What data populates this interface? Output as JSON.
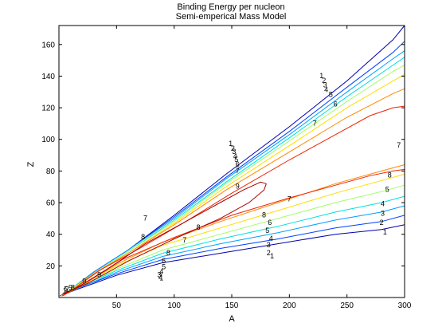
{
  "chart_data": {
    "type": "contour",
    "title": "Binding Energy per nucleon",
    "subtitle": "Semi-emperical Mass Model",
    "xlabel": "A",
    "ylabel": "Z",
    "xlim": [
      0,
      300
    ],
    "ylim": [
      0,
      172
    ],
    "xticks": [
      50,
      100,
      150,
      200,
      250,
      300
    ],
    "yticks": [
      20,
      40,
      60,
      80,
      100,
      120,
      140,
      160
    ],
    "grid": false,
    "legend": "none",
    "levels": [
      {
        "value": 1,
        "color": "#0000ad",
        "upper": [
          [
            1,
            1
          ],
          [
            8,
            4
          ],
          [
            30,
            16
          ],
          [
            60,
            30
          ],
          [
            100,
            52
          ],
          [
            145,
            78
          ],
          [
            200,
            108
          ],
          [
            250,
            137
          ],
          [
            290,
            163
          ],
          [
            300,
            172
          ]
        ],
        "lower": [
          [
            1,
            1
          ],
          [
            15,
            5
          ],
          [
            50,
            14
          ],
          [
            90,
            22
          ],
          [
            140,
            28
          ],
          [
            190,
            34
          ],
          [
            240,
            40
          ],
          [
            280,
            43
          ],
          [
            300,
            46
          ]
        ]
      },
      {
        "value": 2,
        "color": "#0040ff",
        "upper": [
          [
            1,
            1
          ],
          [
            8,
            4
          ],
          [
            30,
            16
          ],
          [
            60,
            30
          ],
          [
            100,
            51
          ],
          [
            145,
            76
          ],
          [
            200,
            105
          ],
          [
            250,
            133
          ],
          [
            290,
            155
          ],
          [
            300,
            162
          ]
        ],
        "lower": [
          [
            1,
            1
          ],
          [
            16,
            6
          ],
          [
            50,
            15
          ],
          [
            90,
            24
          ],
          [
            140,
            31
          ],
          [
            190,
            37
          ],
          [
            240,
            44
          ],
          [
            280,
            48
          ],
          [
            300,
            52
          ]
        ]
      },
      {
        "value": 3,
        "color": "#00a0ff",
        "upper": [
          [
            2,
            1
          ],
          [
            8,
            4
          ],
          [
            30,
            16
          ],
          [
            60,
            30
          ],
          [
            100,
            50
          ],
          [
            145,
            75
          ],
          [
            200,
            103
          ],
          [
            250,
            130
          ],
          [
            290,
            151
          ],
          [
            300,
            156
          ]
        ],
        "lower": [
          [
            2,
            1
          ],
          [
            17,
            6
          ],
          [
            50,
            16
          ],
          [
            90,
            26
          ],
          [
            140,
            34
          ],
          [
            190,
            41
          ],
          [
            240,
            49
          ],
          [
            280,
            54
          ],
          [
            300,
            58
          ]
        ]
      },
      {
        "value": 4,
        "color": "#00e0e0",
        "upper": [
          [
            2,
            1
          ],
          [
            8,
            4
          ],
          [
            30,
            15
          ],
          [
            60,
            29
          ],
          [
            100,
            49
          ],
          [
            145,
            73
          ],
          [
            200,
            101
          ],
          [
            250,
            127
          ],
          [
            290,
            147
          ],
          [
            300,
            152
          ]
        ],
        "lower": [
          [
            2,
            1
          ],
          [
            18,
            7
          ],
          [
            50,
            17
          ],
          [
            90,
            28
          ],
          [
            140,
            37
          ],
          [
            190,
            45
          ],
          [
            240,
            54
          ],
          [
            280,
            60
          ],
          [
            300,
            64
          ]
        ]
      },
      {
        "value": 5,
        "color": "#a0ff60",
        "upper": [
          [
            2,
            1
          ],
          [
            8,
            4
          ],
          [
            30,
            15
          ],
          [
            60,
            29
          ],
          [
            100,
            48
          ],
          [
            145,
            72
          ],
          [
            200,
            99
          ],
          [
            250,
            124
          ],
          [
            290,
            143
          ],
          [
            300,
            147
          ]
        ],
        "lower": [
          [
            2,
            1
          ],
          [
            19,
            7
          ],
          [
            50,
            18
          ],
          [
            90,
            30
          ],
          [
            140,
            40
          ],
          [
            190,
            50
          ],
          [
            240,
            60
          ],
          [
            280,
            67
          ],
          [
            300,
            71
          ]
        ]
      },
      {
        "value": 6,
        "color": "#ffdd00",
        "upper": [
          [
            2,
            1
          ],
          [
            9,
            4
          ],
          [
            30,
            15
          ],
          [
            60,
            28
          ],
          [
            100,
            47
          ],
          [
            145,
            70
          ],
          [
            200,
            96
          ],
          [
            250,
            120
          ],
          [
            290,
            137
          ],
          [
            300,
            141
          ]
        ],
        "lower": [
          [
            2,
            1
          ],
          [
            20,
            8
          ],
          [
            50,
            20
          ],
          [
            90,
            33
          ],
          [
            140,
            44
          ],
          [
            190,
            55
          ],
          [
            240,
            66
          ],
          [
            280,
            74
          ],
          [
            300,
            78
          ]
        ]
      },
      {
        "value": 7,
        "color": "#ff8800",
        "upper": [
          [
            3,
            1
          ],
          [
            10,
            4
          ],
          [
            30,
            15
          ],
          [
            60,
            28
          ],
          [
            100,
            46
          ],
          [
            145,
            68
          ],
          [
            200,
            92
          ],
          [
            250,
            114
          ],
          [
            290,
            129
          ],
          [
            300,
            132
          ]
        ],
        "lower": [
          [
            3,
            1
          ],
          [
            21,
            8
          ],
          [
            50,
            21
          ],
          [
            90,
            35
          ],
          [
            140,
            48
          ],
          [
            190,
            60
          ],
          [
            240,
            72
          ],
          [
            280,
            80
          ],
          [
            300,
            84
          ]
        ]
      },
      {
        "value": 8,
        "color": "#ee2200",
        "upper": [
          [
            3,
            1
          ],
          [
            12,
            5
          ],
          [
            35,
            17
          ],
          [
            70,
            31
          ],
          [
            110,
            48
          ],
          [
            150,
            66
          ],
          [
            200,
            87
          ],
          [
            240,
            103
          ],
          [
            270,
            115
          ],
          [
            290,
            120
          ],
          [
            300,
            121
          ]
        ],
        "lower": [
          [
            3,
            1
          ],
          [
            22,
            9
          ],
          [
            55,
            24
          ],
          [
            100,
            38
          ],
          [
            150,
            52
          ],
          [
            200,
            63
          ],
          [
            240,
            71
          ],
          [
            270,
            77
          ],
          [
            290,
            80
          ],
          [
            300,
            81
          ]
        ]
      },
      {
        "value": 9,
        "color": "#aa0000",
        "upper": [
          [
            3,
            2
          ],
          [
            15,
            6
          ],
          [
            40,
            17
          ],
          [
            75,
            34
          ],
          [
            110,
            48
          ],
          [
            140,
            60
          ],
          [
            160,
            68
          ],
          [
            175,
            73
          ],
          [
            180,
            72
          ]
        ],
        "lower": [
          [
            3,
            2
          ],
          [
            25,
            9
          ],
          [
            60,
            23
          ],
          [
            100,
            37
          ],
          [
            140,
            50
          ],
          [
            165,
            60
          ],
          [
            178,
            68
          ],
          [
            180,
            72
          ]
        ]
      }
    ],
    "inline_labels": [
      {
        "text": "1",
        "x": 149,
        "y": 97
      },
      {
        "text": "2",
        "x": 151,
        "y": 94
      },
      {
        "text": "3",
        "x": 152,
        "y": 92
      },
      {
        "text": "4",
        "x": 153,
        "y": 89
      },
      {
        "text": "5",
        "x": 154,
        "y": 87
      },
      {
        "text": "6",
        "x": 155,
        "y": 84
      },
      {
        "text": "7",
        "x": 155,
        "y": 80
      },
      {
        "text": "1",
        "x": 228,
        "y": 140
      },
      {
        "text": "2",
        "x": 230,
        "y": 137
      },
      {
        "text": "3",
        "x": 231,
        "y": 134
      },
      {
        "text": "4",
        "x": 232,
        "y": 131
      },
      {
        "text": "5",
        "x": 236,
        "y": 128
      },
      {
        "text": "6",
        "x": 240,
        "y": 122
      },
      {
        "text": "7",
        "x": 75,
        "y": 50
      },
      {
        "text": "7",
        "x": 222,
        "y": 110
      },
      {
        "text": "7",
        "x": 295,
        "y": 96
      },
      {
        "text": "7",
        "x": 200,
        "y": 62
      },
      {
        "text": "7",
        "x": 109,
        "y": 36
      },
      {
        "text": "8",
        "x": 73,
        "y": 38
      },
      {
        "text": "8",
        "x": 287,
        "y": 77
      },
      {
        "text": "8",
        "x": 178,
        "y": 52
      },
      {
        "text": "8",
        "x": 121,
        "y": 44
      },
      {
        "text": "8",
        "x": 95,
        "y": 28
      },
      {
        "text": "9",
        "x": 155,
        "y": 70
      },
      {
        "text": "9",
        "x": 35,
        "y": 14
      },
      {
        "text": "9",
        "x": 22,
        "y": 10
      },
      {
        "text": "6",
        "x": 183,
        "y": 47
      },
      {
        "text": "5",
        "x": 181,
        "y": 42
      },
      {
        "text": "4",
        "x": 184,
        "y": 37
      },
      {
        "text": "3",
        "x": 182,
        "y": 33
      },
      {
        "text": "2",
        "x": 182,
        "y": 28
      },
      {
        "text": "1",
        "x": 185,
        "y": 26
      },
      {
        "text": "5",
        "x": 285,
        "y": 68
      },
      {
        "text": "4",
        "x": 281,
        "y": 59
      },
      {
        "text": "3",
        "x": 281,
        "y": 53
      },
      {
        "text": "2",
        "x": 280,
        "y": 47
      },
      {
        "text": "1",
        "x": 283,
        "y": 41
      },
      {
        "text": "6",
        "x": 91,
        "y": 23
      },
      {
        "text": "5",
        "x": 91,
        "y": 19
      },
      {
        "text": "4",
        "x": 89,
        "y": 16
      },
      {
        "text": "3",
        "x": 87,
        "y": 14
      },
      {
        "text": "2",
        "x": 88,
        "y": 13
      },
      {
        "text": "1",
        "x": 89,
        "y": 12
      },
      {
        "text": "1",
        "x": 5,
        "y": 4
      },
      {
        "text": "2",
        "x": 7,
        "y": 5
      },
      {
        "text": "5",
        "x": 6,
        "y": 5
      },
      {
        "text": "9",
        "x": 10,
        "y": 6
      },
      {
        "text": "8",
        "x": 12,
        "y": 6
      }
    ]
  }
}
